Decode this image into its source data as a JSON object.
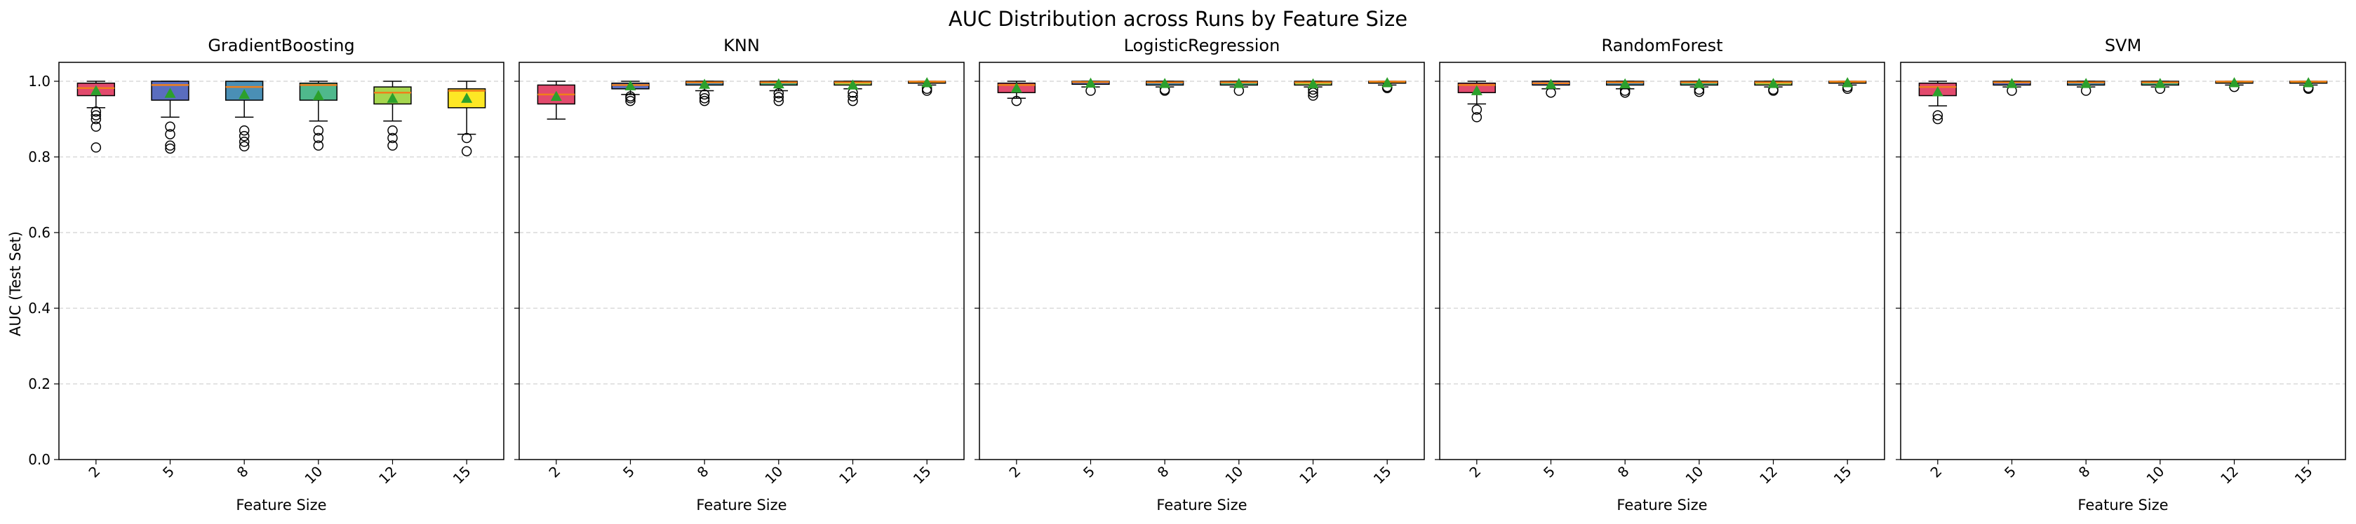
{
  "figure": {
    "suptitle": "AUC Distribution across Runs by Feature Size",
    "ylabel": "AUC (Test Set)"
  },
  "chart_data": [
    {
      "type": "box",
      "title": "GradientBoosting",
      "xlabel": "Feature Size",
      "ylabel": "AUC (Test Set)",
      "categories": [
        "2",
        "5",
        "8",
        "10",
        "12",
        "15"
      ],
      "ylim": [
        0,
        1.05
      ],
      "yticks": [
        "0.0",
        "0.2",
        "0.4",
        "0.6",
        "0.8",
        "1.0"
      ],
      "grid": "y-dashed",
      "box_colors": [
        "#e24a6d",
        "#5a6dbf",
        "#4a8fb5",
        "#4fb88c",
        "#a6d64f",
        "#fde725"
      ],
      "boxes": [
        {
          "whislo": 0.93,
          "q1": 0.962,
          "med": 0.982,
          "q3": 0.995,
          "whishi": 1.0,
          "mean": 0.975,
          "fliers": [
            0.92,
            0.91,
            0.9,
            0.88,
            0.825
          ]
        },
        {
          "whislo": 0.905,
          "q1": 0.95,
          "med": 0.99,
          "q3": 1.0,
          "whishi": 1.0,
          "mean": 0.968,
          "fliers": [
            0.88,
            0.86,
            0.83,
            0.822
          ]
        },
        {
          "whislo": 0.905,
          "q1": 0.95,
          "med": 0.985,
          "q3": 1.0,
          "whishi": 1.0,
          "mean": 0.965,
          "fliers": [
            0.87,
            0.855,
            0.84,
            0.828
          ]
        },
        {
          "whislo": 0.895,
          "q1": 0.95,
          "med": 0.99,
          "q3": 0.995,
          "whishi": 1.0,
          "mean": 0.962,
          "fliers": [
            0.87,
            0.85,
            0.83
          ]
        },
        {
          "whislo": 0.895,
          "q1": 0.94,
          "med": 0.97,
          "q3": 0.985,
          "whishi": 1.0,
          "mean": 0.955,
          "fliers": [
            0.87,
            0.85,
            0.83
          ]
        },
        {
          "whislo": 0.86,
          "q1": 0.93,
          "med": 0.975,
          "q3": 0.98,
          "whishi": 1.0,
          "mean": 0.955,
          "fliers": [
            0.85,
            0.815
          ]
        }
      ]
    },
    {
      "type": "box",
      "title": "KNN",
      "xlabel": "Feature Size",
      "categories": [
        "2",
        "5",
        "8",
        "10",
        "12",
        "15"
      ],
      "ylim": [
        0,
        1.05
      ],
      "grid": "y-dashed",
      "box_colors": [
        "#e24a6d",
        "#5a6dbf",
        "#4a8fb5",
        "#4fb88c",
        "#a6d64f",
        "#fde725"
      ],
      "boxes": [
        {
          "whislo": 0.9,
          "q1": 0.94,
          "med": 0.965,
          "q3": 0.99,
          "whishi": 1.0,
          "mean": 0.96,
          "fliers": []
        },
        {
          "whislo": 0.965,
          "q1": 0.98,
          "med": 0.99,
          "q3": 0.995,
          "whishi": 1.0,
          "mean": 0.988,
          "fliers": [
            0.96,
            0.955,
            0.948
          ]
        },
        {
          "whislo": 0.975,
          "q1": 0.99,
          "med": 0.997,
          "q3": 1.0,
          "whishi": 1.0,
          "mean": 0.992,
          "fliers": [
            0.965,
            0.955,
            0.948
          ]
        },
        {
          "whislo": 0.975,
          "q1": 0.99,
          "med": 0.997,
          "q3": 1.0,
          "whishi": 1.0,
          "mean": 0.993,
          "fliers": [
            0.968,
            0.958,
            0.948
          ]
        },
        {
          "whislo": 0.98,
          "q1": 0.99,
          "med": 0.997,
          "q3": 1.0,
          "whishi": 1.0,
          "mean": 0.99,
          "fliers": [
            0.97,
            0.96,
            0.948
          ]
        },
        {
          "whislo": 0.99,
          "q1": 0.995,
          "med": 0.999,
          "q3": 1.0,
          "whishi": 1.0,
          "mean": 0.996,
          "fliers": [
            0.98,
            0.975
          ]
        }
      ]
    },
    {
      "type": "box",
      "title": "LogisticRegression",
      "xlabel": "Feature Size",
      "categories": [
        "2",
        "5",
        "8",
        "10",
        "12",
        "15"
      ],
      "ylim": [
        0,
        1.05
      ],
      "grid": "y-dashed",
      "box_colors": [
        "#e24a6d",
        "#5a6dbf",
        "#4a8fb5",
        "#4fb88c",
        "#a6d64f",
        "#fde725"
      ],
      "boxes": [
        {
          "whislo": 0.955,
          "q1": 0.97,
          "med": 0.99,
          "q3": 0.995,
          "whishi": 1.0,
          "mean": 0.982,
          "fliers": [
            0.948
          ]
        },
        {
          "whislo": 0.985,
          "q1": 0.992,
          "med": 0.998,
          "q3": 1.0,
          "whishi": 1.0,
          "mean": 0.995,
          "fliers": [
            0.975
          ]
        },
        {
          "whislo": 0.985,
          "q1": 0.99,
          "med": 0.997,
          "q3": 1.0,
          "whishi": 1.0,
          "mean": 0.994,
          "fliers": [
            0.978,
            0.975
          ]
        },
        {
          "whislo": 0.985,
          "q1": 0.99,
          "med": 0.997,
          "q3": 1.0,
          "whishi": 1.0,
          "mean": 0.994,
          "fliers": [
            0.975
          ]
        },
        {
          "whislo": 0.985,
          "q1": 0.99,
          "med": 0.997,
          "q3": 1.0,
          "whishi": 1.0,
          "mean": 0.993,
          "fliers": [
            0.978,
            0.97,
            0.962
          ]
        },
        {
          "whislo": 0.99,
          "q1": 0.995,
          "med": 0.999,
          "q3": 1.0,
          "whishi": 1.0,
          "mean": 0.996,
          "fliers": [
            0.985,
            0.982
          ]
        }
      ]
    },
    {
      "type": "box",
      "title": "RandomForest",
      "xlabel": "Feature Size",
      "categories": [
        "2",
        "5",
        "8",
        "10",
        "12",
        "15"
      ],
      "ylim": [
        0,
        1.05
      ],
      "grid": "y-dashed",
      "box_colors": [
        "#e24a6d",
        "#5a6dbf",
        "#4a8fb5",
        "#4fb88c",
        "#a6d64f",
        "#fde725"
      ],
      "boxes": [
        {
          "whislo": 0.94,
          "q1": 0.97,
          "med": 0.99,
          "q3": 0.995,
          "whishi": 1.0,
          "mean": 0.975,
          "fliers": [
            0.925,
            0.905
          ]
        },
        {
          "whislo": 0.98,
          "q1": 0.99,
          "med": 0.995,
          "q3": 1.0,
          "whishi": 1.0,
          "mean": 0.992,
          "fliers": [
            0.97
          ]
        },
        {
          "whislo": 0.98,
          "q1": 0.99,
          "med": 0.997,
          "q3": 1.0,
          "whishi": 1.0,
          "mean": 0.993,
          "fliers": [
            0.975,
            0.97
          ]
        },
        {
          "whislo": 0.985,
          "q1": 0.99,
          "med": 0.997,
          "q3": 1.0,
          "whishi": 1.0,
          "mean": 0.994,
          "fliers": [
            0.978,
            0.972
          ]
        },
        {
          "whislo": 0.985,
          "q1": 0.99,
          "med": 0.997,
          "q3": 1.0,
          "whishi": 1.0,
          "mean": 0.994,
          "fliers": [
            0.978,
            0.975
          ]
        },
        {
          "whislo": 0.99,
          "q1": 0.995,
          "med": 0.999,
          "q3": 1.0,
          "whishi": 1.0,
          "mean": 0.996,
          "fliers": [
            0.985,
            0.98
          ]
        }
      ]
    },
    {
      "type": "box",
      "title": "SVM",
      "xlabel": "Feature Size",
      "categories": [
        "2",
        "5",
        "8",
        "10",
        "12",
        "15"
      ],
      "ylim": [
        0,
        1.05
      ],
      "grid": "y-dashed",
      "box_colors": [
        "#e24a6d",
        "#5a6dbf",
        "#4a8fb5",
        "#4fb88c",
        "#a6d64f",
        "#fde725"
      ],
      "boxes": [
        {
          "whislo": 0.935,
          "q1": 0.962,
          "med": 0.985,
          "q3": 0.995,
          "whishi": 1.0,
          "mean": 0.972,
          "fliers": [
            0.91,
            0.9
          ]
        },
        {
          "whislo": 0.985,
          "q1": 0.99,
          "med": 0.997,
          "q3": 1.0,
          "whishi": 1.0,
          "mean": 0.994,
          "fliers": [
            0.975
          ]
        },
        {
          "whislo": 0.985,
          "q1": 0.99,
          "med": 0.997,
          "q3": 1.0,
          "whishi": 1.0,
          "mean": 0.994,
          "fliers": [
            0.975
          ]
        },
        {
          "whislo": 0.985,
          "q1": 0.99,
          "med": 0.997,
          "q3": 1.0,
          "whishi": 1.0,
          "mean": 0.994,
          "fliers": [
            0.98
          ]
        },
        {
          "whislo": 0.99,
          "q1": 0.995,
          "med": 0.999,
          "q3": 1.0,
          "whishi": 1.0,
          "mean": 0.996,
          "fliers": [
            0.985
          ]
        },
        {
          "whislo": 0.99,
          "q1": 0.995,
          "med": 0.999,
          "q3": 1.0,
          "whishi": 1.0,
          "mean": 0.996,
          "fliers": [
            0.983,
            0.98
          ]
        }
      ]
    }
  ]
}
